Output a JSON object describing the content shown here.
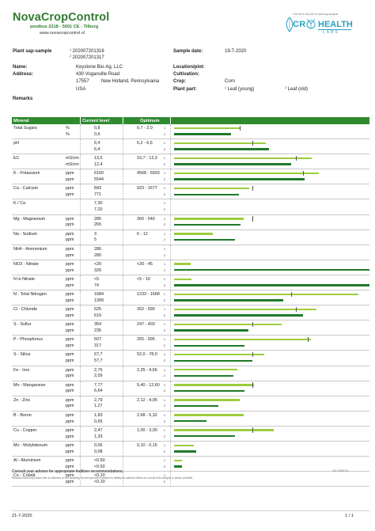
{
  "lab": {
    "name": "NovaCropControl",
    "address": "postbus 2218  -  5001 CE  -  Tilburg",
    "website": "www.novacropcontrol.nl"
  },
  "brand": {
    "tagline": "The first & only lab for plant sap analysis",
    "crop": "CR",
    "health": "HEALTH",
    "labs": "LABS"
  },
  "info": {
    "sample_label": "Plant sap-sample",
    "sample_1": "202007201316",
    "sample_2": "202007201317",
    "sample_date_label": "Sample date:",
    "sample_date": "19-7-2020",
    "name_label": "Name:",
    "name": "Keystone Bio-Ag, LLC",
    "address_label": "Address:",
    "address_1": "430 Voganville Road",
    "zip": "17557",
    "city": "New Holland, Pennsylvania",
    "country": "USA",
    "location_label": "Location/plot:",
    "cultivation_label": "Cultivation:",
    "crop_label": "Crop:",
    "crop": "Corn",
    "plant_part_label": "Plant part:",
    "plant_part_1": "Leaf (young)",
    "plant_part_2": "Leaf (old)",
    "remarks_label": "Remarks",
    "sup1": "1",
    "sup2": "2"
  },
  "table": {
    "headers": {
      "mineral": "Mineral",
      "current": "Current level",
      "optimum": "Optimum"
    },
    "rows": [
      {
        "mineral": "Total Sugars",
        "unit1": "%",
        "unit2": "%",
        "v1": "0,8",
        "v2": "0,6",
        "optimum": "0,7 - 2,0",
        "level1": 0.335,
        "level2": 0.29,
        "marker": 0.335
      },
      {
        "mineral": "pH",
        "unit1": "",
        "unit2": "",
        "v1": "6,4",
        "v2": "6,4",
        "optimum": "6,2 - 6,6",
        "level1": 0.47,
        "level2": 0.485,
        "marker": 0.4
      },
      {
        "mineral": "EC",
        "unit1": "mS/cm",
        "unit2": "mS/cm",
        "v1": "13,5",
        "v2": "12,4",
        "optimum": "10,7 - 13,3",
        "level1": 0.705,
        "level2": 0.6,
        "marker": 0.625
      },
      {
        "mineral": "K - Potassium",
        "unit1": "ppm",
        "unit2": "ppm",
        "v1": "6160",
        "v2": "5544",
        "optimum": "4568 - 5933",
        "level1": 0.74,
        "level2": 0.67,
        "marker": 0.66
      },
      {
        "mineral": "Ca - Calcium",
        "unit1": "ppm",
        "unit2": "ppm",
        "v1": "843",
        "v2": "771",
        "optimum": "923 - 1677",
        "level1": 0.385,
        "level2": 0.33,
        "marker": 0.4
      },
      {
        "mineral": "K / Ca",
        "unit1": "",
        "unit2": "",
        "v1": "7,30",
        "v2": "7,20",
        "optimum": "",
        "level1": 0,
        "level2": 0,
        "marker": null
      },
      {
        "mineral": "Mg - Magnesium",
        "unit1": "ppm",
        "unit2": "ppm",
        "v1": "285",
        "v2": "265",
        "optimum": "360 - 540",
        "level1": 0.355,
        "level2": 0.34,
        "marker": 0.4
      },
      {
        "mineral": "Na - Sodium",
        "unit1": "ppm",
        "unit2": "ppm",
        "v1": "3",
        "v2": "5",
        "optimum": "6 - 12",
        "level1": 0.2,
        "level2": 0.31,
        "marker": null
      },
      {
        "mineral": "NH4 - Ammonium",
        "unit1": "ppm",
        "unit2": "ppm",
        "v1": "286",
        "v2": "280",
        "optimum": "",
        "level1": 0,
        "level2": 0,
        "marker": null
      },
      {
        "mineral": "NO3 - Nitrate",
        "unit1": "ppm",
        "unit2": "ppm",
        "v1": "<20",
        "v2": "326",
        "optimum": "<20 - 45",
        "level1": 0.085,
        "level2": 1.0,
        "marker": null
      },
      {
        "mineral": "N in Nitrate",
        "unit1": "ppm",
        "unit2": "ppm",
        "v1": "<5",
        "v2": "74",
        "optimum": "<5 - 10",
        "level1": 0.09,
        "level2": 1.0,
        "marker": null
      },
      {
        "mineral": "N - Total Nitrogen",
        "unit1": "ppm",
        "unit2": "ppm",
        "v1": "1684",
        "v2": "1399",
        "optimum": "1233 - 1668",
        "level1": 0.945,
        "level2": 0.56,
        "marker": 0.6
      },
      {
        "mineral": "Cl - Chloride",
        "unit1": "ppm",
        "unit2": "ppm",
        "v1": "625",
        "v2": "619",
        "optimum": "302 - 599",
        "level1": 0.73,
        "level2": 0.66,
        "marker": 0.625
      },
      {
        "mineral": "S - Sulfur",
        "unit1": "ppm",
        "unit2": "ppm",
        "v1": "354",
        "v2": "235",
        "optimum": "247 - 403",
        "level1": 0.55,
        "level2": 0.38,
        "marker": 0.4
      },
      {
        "mineral": "P - Phosphorus",
        "unit1": "ppm",
        "unit2": "ppm",
        "v1": "607",
        "v2": "317",
        "optimum": "255 - 595",
        "level1": 0.7,
        "level2": 0.36,
        "marker": 0.685
      },
      {
        "mineral": "S - Silica",
        "unit1": "ppm",
        "unit2": "ppm",
        "v1": "67,7",
        "v2": "57,7",
        "optimum": "52,0 - 78,0",
        "level1": 0.46,
        "level2": 0.4,
        "marker": 0.4
      },
      {
        "mineral": "Fe - Iron",
        "unit1": "ppm",
        "unit2": "ppm",
        "v1": "2,76",
        "v2": "2,09",
        "optimum": "2,35 - 4,66",
        "level1": 0.325,
        "level2": 0.305,
        "marker": null
      },
      {
        "mineral": "Mn - Manganese",
        "unit1": "ppm",
        "unit2": "ppm",
        "v1": "7,77",
        "v2": "6,64",
        "optimum": "5,40 - 12,60",
        "level1": 0.41,
        "level2": 0.36,
        "marker": 0.4
      },
      {
        "mineral": "Zn - Zinc",
        "unit1": "ppm",
        "unit2": "ppm",
        "v1": "2,79",
        "v2": "1,27",
        "optimum": "2,12 - 4,95",
        "level1": 0.335,
        "level2": 0.225,
        "marker": null
      },
      {
        "mineral": "B - Boron",
        "unit1": "ppm",
        "unit2": "ppm",
        "v1": "1,83",
        "v2": "0,65",
        "optimum": "2,68 - 5,32",
        "level1": 0.355,
        "level2": 0.165,
        "marker": null
      },
      {
        "mineral": "Cu - Copper",
        "unit1": "ppm",
        "unit2": "ppm",
        "v1": "2,47",
        "v2": "1,33",
        "optimum": "1,00 - 3,00",
        "level1": 0.51,
        "level2": 0.31,
        "marker": 0.4
      },
      {
        "mineral": "Mo - Molybdenum",
        "unit1": "ppm",
        "unit2": "ppm",
        "v1": "0,06",
        "v2": "0,08",
        "optimum": "0,10 - 0,15",
        "level1": 0.1,
        "level2": 0.115,
        "marker": null
      },
      {
        "mineral": "Al - Aluminium",
        "unit1": "ppm",
        "unit2": "ppm",
        "v1": "<0,50",
        "v2": "<0,50",
        "optimum": "",
        "level1": 0.04,
        "level2": 0.04,
        "marker": null
      },
      {
        "mineral": "Co - Cobalt",
        "unit1": "ppm",
        "unit2": "ppm",
        "v1": "<0,10",
        "v2": "<0,10",
        "optimum": "",
        "level1": 0,
        "level2": 0,
        "marker": null
      }
    ]
  },
  "footer": {
    "advice": "Consult your advisor for appropriate fertilizer recommendations.",
    "disclaimer": "Because NovaCropControl has no influence on the sampling, NovaCropControl accepts no liability for adverse effects as a result of its analysis or advice provided.",
    "code": "201 20200701",
    "date": "21-7-2020",
    "page": "1 / 1"
  },
  "colors": {
    "green_dark": "#1f7a2a",
    "green_light": "#9ccc3c",
    "header": "#2f8a2f",
    "brand_blue": "#2aa2c4"
  }
}
